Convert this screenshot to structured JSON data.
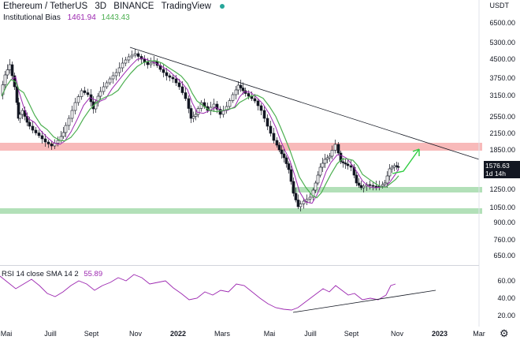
{
  "header": {
    "symbol": "Ethereum / TetherUS",
    "interval": "3D",
    "exchange": "BINANCE",
    "provider": "TradingView",
    "status_color": "#26a69a"
  },
  "indicator": {
    "name": "Institutional Bias",
    "value1": "1461.94",
    "value2": "1443.43",
    "color1": "#9c27b0",
    "color2": "#4caf50"
  },
  "price_axis": {
    "currency": "USDT",
    "labels": [
      "6500.00",
      "5300.00",
      "4500.00",
      "3750.00",
      "3150.00",
      "2550.00",
      "2150.00",
      "1850.00",
      "1250.00",
      "1050.00",
      "900.00",
      "760.00",
      "650.00"
    ]
  },
  "last_price": {
    "value": "1576.63",
    "countdown": "1d 14h",
    "color": "#131722"
  },
  "rsi": {
    "label": "RSI 14 close SMA 14 2",
    "value": "55.89",
    "axis_labels": [
      "60.00",
      "40.00",
      "20.00"
    ]
  },
  "time_axis": {
    "labels": [
      "Mai",
      "Juill",
      "Sept",
      "Nov",
      "2022",
      "Mars",
      "Mai",
      "Juill",
      "Sept",
      "Nov",
      "2023",
      "Mar"
    ]
  },
  "zones": {
    "resistance_color": "#f5a3a3",
    "support_color": "#9fd8a6"
  },
  "chart_data": {
    "type": "candlestick",
    "title": "Ethereum / TetherUS 3D",
    "y_scale": "log",
    "resistance_zone": [
      1800,
      1930
    ],
    "support_zones": [
      [
        1200,
        1290
      ],
      [
        960,
        1010
      ]
    ],
    "trendline": "descending from ~4950 (Nov 2021) to ~1900 (Dec 2022)",
    "projection": "green arrow from ~1550 up toward ~1900",
    "rsi_trendline": "ascending support from ~25 (Jun 2022) to ~50 (Dec 2022)"
  }
}
